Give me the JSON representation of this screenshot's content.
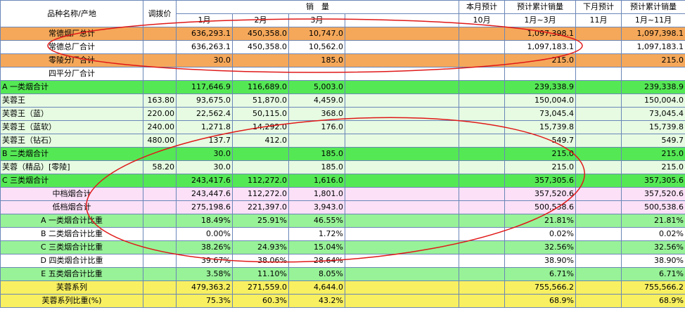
{
  "header": {
    "product": "品种名称/产地",
    "price": "调拨价",
    "sales": "销　量",
    "m1": "1月",
    "m2": "2月",
    "m3": "3月",
    "cur_forecast": "本月预计",
    "m10": "10月",
    "cum_forecast": "预计累计销量",
    "cum_range": "1月~3月",
    "next_forecast": "下月预计",
    "m11": "11月",
    "cum_forecast2": "预计累计销量",
    "cum_range2": "1月~11月"
  },
  "rows": [
    {
      "name": "常德烟厂总计",
      "price": "",
      "m1": "636,293.1",
      "m2": "450,358.0",
      "m3": "10,747.0",
      "cum": "1,097,398.1",
      "cum2": "1,097,398.1"
    },
    {
      "name": "常德总厂合计",
      "price": "",
      "m1": "636,263.1",
      "m2": "450,358.0",
      "m3": "10,562.0",
      "cum": "1,097,183.1",
      "cum2": "1,097,183.1"
    },
    {
      "name": "零陵分厂合计",
      "price": "",
      "m1": "30.0",
      "m2": "",
      "m3": "185.0",
      "cum": "215.0",
      "cum2": "215.0"
    },
    {
      "name": "四平分厂合计",
      "price": "",
      "m1": "",
      "m2": "",
      "m3": "",
      "cum": "",
      "cum2": ""
    },
    {
      "name": "A 一类烟合计",
      "price": "",
      "m1": "117,646.9",
      "m2": "116,689.0",
      "m3": "5,003.0",
      "cum": "239,338.9",
      "cum2": "239,338.9"
    },
    {
      "name": "芙蓉王",
      "price": "163.80",
      "m1": "93,675.0",
      "m2": "51,870.0",
      "m3": "4,459.0",
      "cum": "150,004.0",
      "cum2": "150,004.0"
    },
    {
      "name": "芙蓉王（蓝）",
      "price": "220.00",
      "m1": "22,562.4",
      "m2": "50,115.0",
      "m3": "368.0",
      "cum": "73,045.4",
      "cum2": "73,045.4"
    },
    {
      "name": "芙蓉王（蓝软）",
      "price": "240.00",
      "m1": "1,271.8",
      "m2": "14,292.0",
      "m3": "176.0",
      "cum": "15,739.8",
      "cum2": "15,739.8"
    },
    {
      "name": "芙蓉王（钻石）",
      "price": "480.00",
      "m1": "137.7",
      "m2": "412.0",
      "m3": "",
      "cum": "549.7",
      "cum2": "549.7"
    },
    {
      "name": "B 二类烟合计",
      "price": "",
      "m1": "30.0",
      "m2": "",
      "m3": "185.0",
      "cum": "215.0",
      "cum2": "215.0"
    },
    {
      "name": "芙蓉（精品）[零陵]",
      "price": "58.20",
      "m1": "30.0",
      "m2": "",
      "m3": "185.0",
      "cum": "215.0",
      "cum2": "215.0"
    },
    {
      "name": "C 三类烟合计",
      "price": "",
      "m1": "243,417.6",
      "m2": "112,272.0",
      "m3": "1,616.0",
      "cum": "357,305.6",
      "cum2": "357,305.6"
    },
    {
      "name": "中档烟合计",
      "price": "",
      "m1": "243,447.6",
      "m2": "112,272.0",
      "m3": "1,801.0",
      "cum": "357,520.6",
      "cum2": "357,520.6"
    },
    {
      "name": "低档烟合计",
      "price": "",
      "m1": "275,198.6",
      "m2": "221,397.0",
      "m3": "3,943.0",
      "cum": "500,538.6",
      "cum2": "500,538.6"
    },
    {
      "name": "A 一类烟合计比重",
      "price": "",
      "m1": "18.49%",
      "m2": "25.91%",
      "m3": "46.55%",
      "cum": "21.81%",
      "cum2": "21.81%"
    },
    {
      "name": "B 二类烟合计比重",
      "price": "",
      "m1": "0.00%",
      "m2": "",
      "m3": "1.72%",
      "cum": "0.02%",
      "cum2": "0.02%"
    },
    {
      "name": "C 三类烟合计比重",
      "price": "",
      "m1": "38.26%",
      "m2": "24.93%",
      "m3": "15.04%",
      "cum": "32.56%",
      "cum2": "32.56%"
    },
    {
      "name": "D 四类烟合计比重",
      "price": "",
      "m1": "39.67%",
      "m2": "38.06%",
      "m3": "28.64%",
      "cum": "38.90%",
      "cum2": "38.90%"
    },
    {
      "name": "E 五类烟合计比重",
      "price": "",
      "m1": "3.58%",
      "m2": "11.10%",
      "m3": "8.05%",
      "cum": "6.71%",
      "cum2": "6.71%"
    },
    {
      "name": "芙蓉系列",
      "price": "",
      "m1": "479,363.2",
      "m2": "271,559.0",
      "m3": "4,644.0",
      "cum": "755,566.2",
      "cum2": "755,566.2"
    },
    {
      "name": "芙蓉系列比重(%)",
      "price": "",
      "m1": "75.3%",
      "m2": "60.3%",
      "m3": "43.2%",
      "cum": "68.9%",
      "cum2": "68.9%"
    }
  ],
  "colors": {
    "orange": "#f5a85a",
    "green": "#55e855",
    "lightgreen": "#e6fbe2",
    "pink": "#fbe0f7",
    "midgreen": "#98f298",
    "yellow": "#f8f060",
    "grid": "#6a86b8",
    "ellipse": "#e01818"
  }
}
